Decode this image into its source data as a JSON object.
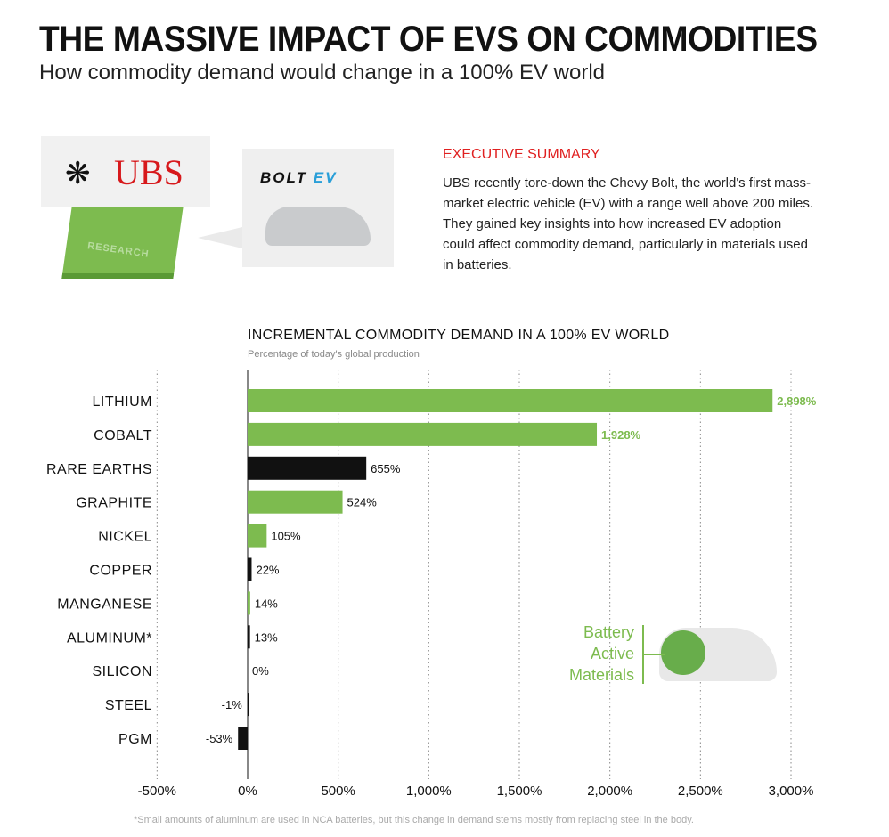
{
  "header": {
    "title": "THE MASSIVE IMPACT OF EVS ON COMMODITIES",
    "subtitle": "How commodity demand would change in a 100% EV world"
  },
  "logos": {
    "ubs": "UBS",
    "research_book": "RESEARCH",
    "bolt": "BOLT",
    "ev": "EV"
  },
  "summary": {
    "heading": "EXECUTIVE SUMMARY",
    "body": "UBS recently tore-down the Chevy Bolt, the world's first mass-market electric vehicle (EV) with a range well above 200 miles. They gained key insights into how increased EV adoption could affect commodity demand, particularly in materials used in batteries."
  },
  "legend": {
    "label": "Battery Active Materials"
  },
  "footnote": "*Small amounts of aluminum are used in NCA batteries, but this change in demand stems mostly from replacing steel in the body.",
  "colors": {
    "battery": "#7dbb4f",
    "other": "#111111",
    "accent": "#e02020"
  },
  "chart_data": {
    "type": "bar",
    "orientation": "horizontal",
    "title": "INCREMENTAL COMMODITY DEMAND IN A 100% EV WORLD",
    "subtitle": "Percentage of today's global production",
    "categories": [
      "LITHIUM",
      "COBALT",
      "RARE EARTHS",
      "GRAPHITE",
      "NICKEL",
      "COPPER",
      "MANGANESE",
      "ALUMINUM*",
      "SILICON",
      "STEEL",
      "PGM"
    ],
    "values": [
      2898,
      1928,
      655,
      524,
      105,
      22,
      14,
      13,
      0,
      -1,
      -53
    ],
    "value_labels": [
      "2,898%",
      "1,928%",
      "655%",
      "524%",
      "105%",
      "22%",
      "14%",
      "13%",
      "0%",
      "-1%",
      "-53%"
    ],
    "battery_active": [
      true,
      true,
      false,
      true,
      true,
      false,
      true,
      false,
      false,
      false,
      false
    ],
    "xlim": [
      -500,
      3000
    ],
    "xticks": [
      -500,
      0,
      500,
      1000,
      1500,
      2000,
      2500,
      3000
    ],
    "xtick_labels": [
      "-500%",
      "0%",
      "500%",
      "1,000%",
      "1,500%",
      "2,000%",
      "2,500%",
      "3,000%"
    ],
    "grid": "dotted vertical",
    "legend": "bottom-right"
  }
}
